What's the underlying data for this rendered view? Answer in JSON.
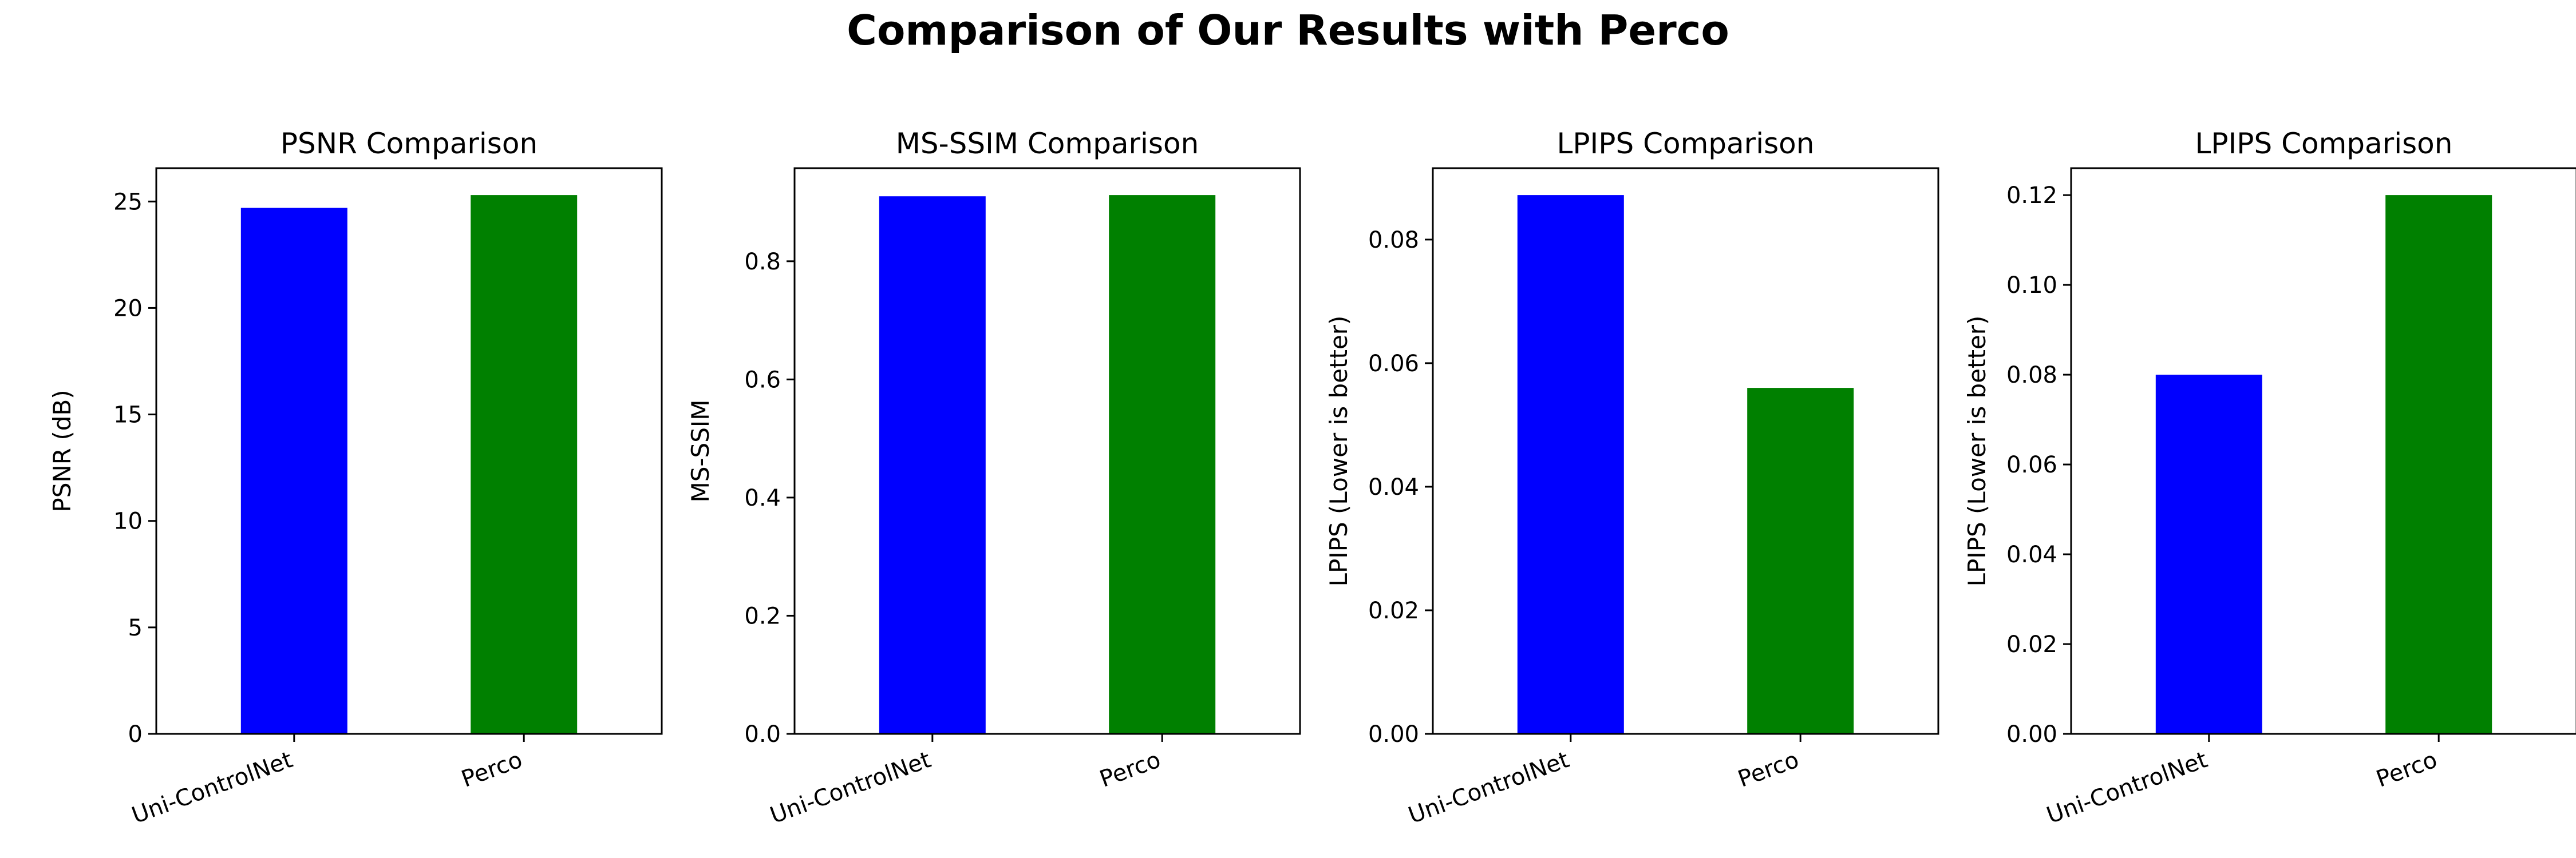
{
  "figure": {
    "suptitle": "Comparison of Our Results with Perco"
  },
  "chart_data": [
    {
      "type": "bar",
      "title": "PSNR Comparison",
      "xlabel": "",
      "ylabel": "PSNR (dB)",
      "categories": [
        "Uni-ControlNet",
        "Perco"
      ],
      "values": [
        24.7,
        25.3
      ],
      "colors": [
        "#0000ff",
        "#008000"
      ],
      "ylim": [
        0,
        26.565
      ],
      "yticks": [
        0,
        5,
        10,
        15,
        20,
        25
      ],
      "ytick_labels": [
        "0",
        "5",
        "10",
        "15",
        "20",
        "25"
      ],
      "grid": false
    },
    {
      "type": "bar",
      "title": "MS-SSIM Comparison",
      "xlabel": "",
      "ylabel": "MS-SSIM",
      "categories": [
        "Uni-ControlNet",
        "Perco"
      ],
      "values": [
        0.91,
        0.912
      ],
      "colors": [
        "#0000ff",
        "#008000"
      ],
      "ylim": [
        0,
        0.9576
      ],
      "yticks": [
        0,
        0.2,
        0.4,
        0.6,
        0.8
      ],
      "ytick_labels": [
        "0.0",
        "0.2",
        "0.4",
        "0.6",
        "0.8"
      ],
      "grid": false
    },
    {
      "type": "bar",
      "title": "LPIPS Comparison",
      "xlabel": "",
      "ylabel": "LPIPS (Lower is better)",
      "categories": [
        "Uni-ControlNet",
        "Perco"
      ],
      "values": [
        0.0872,
        0.056
      ],
      "colors": [
        "#0000ff",
        "#008000"
      ],
      "ylim": [
        0,
        0.09156
      ],
      "yticks": [
        0,
        0.02,
        0.04,
        0.06,
        0.08
      ],
      "ytick_labels": [
        "0.00",
        "0.02",
        "0.04",
        "0.06",
        "0.08"
      ],
      "grid": false
    },
    {
      "type": "bar",
      "title": "LPIPS Comparison",
      "xlabel": "",
      "ylabel": "LPIPS (Lower is better)",
      "categories": [
        "Uni-ControlNet",
        "Perco"
      ],
      "values": [
        0.08,
        0.12
      ],
      "colors": [
        "#0000ff",
        "#008000"
      ],
      "ylim": [
        0,
        0.126
      ],
      "yticks": [
        0,
        0.02,
        0.04,
        0.06,
        0.08,
        0.1,
        0.12
      ],
      "ytick_labels": [
        "0.00",
        "0.02",
        "0.04",
        "0.06",
        "0.08",
        "0.10",
        "0.12"
      ],
      "grid": false
    }
  ]
}
